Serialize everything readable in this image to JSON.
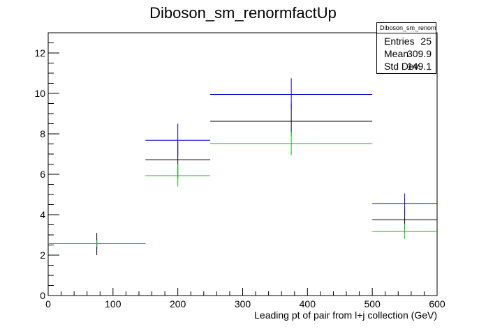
{
  "chart_data": {
    "type": "scatter",
    "title": "Diboson_sm_renormfactUp",
    "xlabel": "Leading pt of pair from l+j collection (GeV)",
    "ylabel": "",
    "xlim": [
      0,
      600
    ],
    "ylim": [
      0,
      13
    ],
    "x_ticks": [
      0,
      100,
      200,
      300,
      400,
      500,
      600
    ],
    "y_ticks": [
      0,
      2,
      4,
      6,
      8,
      10,
      12
    ],
    "grid": false,
    "series": [
      {
        "color": "#000000",
        "bins": [
          {
            "x_low": 0,
            "x_high": 150,
            "x_center": 75,
            "y": 2.57,
            "err_low": 2.0,
            "err_high": 3.1
          },
          {
            "x_low": 150,
            "x_high": 250,
            "x_center": 200,
            "y": 6.72,
            "err_low": 5.8,
            "err_high": 7.6
          },
          {
            "x_low": 250,
            "x_high": 500,
            "x_center": 375,
            "y": 8.62,
            "err_low": 7.9,
            "err_high": 9.5
          },
          {
            "x_low": 500,
            "x_high": 600,
            "x_center": 550,
            "y": 3.75,
            "err_low": 3.2,
            "err_high": 4.3
          }
        ]
      },
      {
        "color": "#0000cc",
        "bins": [
          {
            "x_low": 0,
            "x_high": 150,
            "x_center": 75,
            "y": 2.57,
            "err_low": 2.3,
            "err_high": 2.8
          },
          {
            "x_low": 150,
            "x_high": 250,
            "x_center": 200,
            "y": 7.68,
            "err_low": 6.9,
            "err_high": 8.5
          },
          {
            "x_low": 250,
            "x_high": 500,
            "x_center": 375,
            "y": 9.95,
            "err_low": 9.2,
            "err_high": 10.75
          },
          {
            "x_low": 500,
            "x_high": 600,
            "x_center": 550,
            "y": 4.55,
            "err_low": 4.0,
            "err_high": 5.05
          }
        ]
      },
      {
        "color": "#00cc00",
        "bins": [
          {
            "x_low": 0,
            "x_high": 150,
            "x_center": 75,
            "y": 2.57,
            "err_low": 2.4,
            "err_high": 2.75
          },
          {
            "x_low": 150,
            "x_high": 250,
            "x_center": 200,
            "y": 5.93,
            "err_low": 5.4,
            "err_high": 6.5
          },
          {
            "x_low": 250,
            "x_high": 500,
            "x_center": 375,
            "y": 7.52,
            "err_low": 6.95,
            "err_high": 8.1
          },
          {
            "x_low": 500,
            "x_high": 600,
            "x_center": 550,
            "y": 3.17,
            "err_low": 2.8,
            "err_high": 3.55
          }
        ]
      }
    ]
  },
  "stats_box": {
    "title": "Diboson_sm_renormfactUp",
    "entries_label": "Entries",
    "entries_value": "25",
    "mean_label": "Mean",
    "mean_value": "309.9",
    "stddev_label": "Std Dev",
    "stddev_value": "149.1"
  }
}
